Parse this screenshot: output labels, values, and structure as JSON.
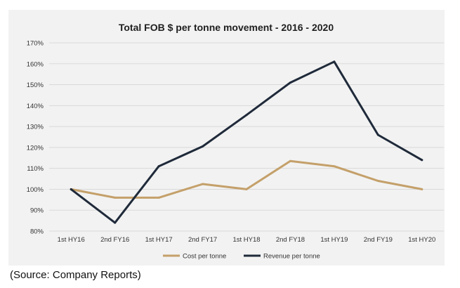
{
  "chart_data": {
    "type": "line",
    "title": "Total FOB $ per tonne movement - 2016 - 2020",
    "categories": [
      "1st HY16",
      "2nd FY16",
      "1st HY17",
      "2nd FY17",
      "1st HY18",
      "2nd FY18",
      "1st HY19",
      "2nd FY19",
      "1st HY20"
    ],
    "series": [
      {
        "name": "Cost per tonne",
        "color": "#c4a06a",
        "values": [
          100,
          96,
          96,
          102.5,
          100,
          113.5,
          111,
          104,
          100
        ]
      },
      {
        "name": "Revenue per tonne",
        "color": "#1f2a3a",
        "values": [
          100,
          84,
          111,
          120.5,
          135.5,
          151,
          161,
          126,
          114
        ]
      }
    ],
    "ylim": [
      80,
      170
    ],
    "yticks": [
      "80%",
      "90%",
      "100%",
      "110%",
      "120%",
      "130%",
      "140%",
      "150%",
      "160%",
      "170%"
    ],
    "xlabel": "",
    "ylabel": "",
    "grid": true,
    "legend_position": "bottom"
  },
  "source_note": "(Source: Company Reports)"
}
